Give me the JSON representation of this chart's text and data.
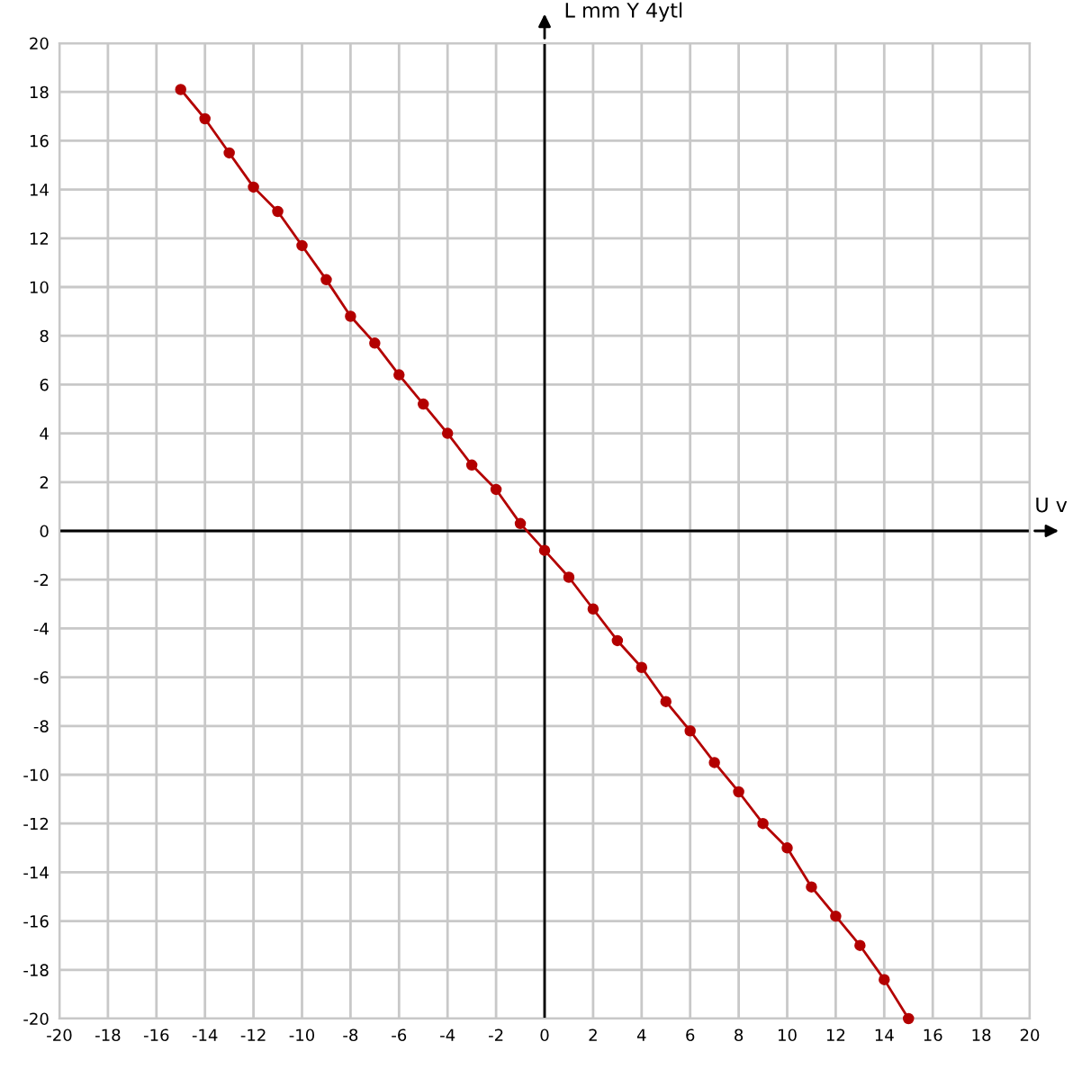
{
  "chart_data": {
    "type": "line",
    "xlabel": "U v",
    "ylabel": "L mm Y 4ytl",
    "x": [
      -15,
      -14,
      -13,
      -12,
      -11,
      -10,
      -9,
      -8,
      -7,
      -6,
      -5,
      -4,
      -3,
      -2,
      -1,
      0,
      1,
      2,
      3,
      4,
      5,
      6,
      7,
      8,
      9,
      10,
      11,
      12,
      13,
      14,
      15
    ],
    "series": [
      {
        "color": "#b30000",
        "values": [
          18.1,
          16.9,
          15.5,
          14.1,
          13.1,
          11.7,
          10.3,
          8.8,
          7.7,
          6.4,
          5.2,
          4.0,
          2.7,
          1.7,
          0.3,
          -0.8,
          -1.9,
          -3.2,
          -4.5,
          -5.6,
          -7.0,
          -8.2,
          -9.5,
          -10.7,
          -12.0,
          -13.0,
          -14.6,
          -15.8,
          -17.0,
          -18.4,
          -20.0
        ]
      }
    ],
    "xlim": [
      -20,
      20
    ],
    "ylim": [
      -20,
      20
    ],
    "xticks": [
      -20,
      -18,
      -16,
      -14,
      -12,
      -10,
      -8,
      -6,
      -4,
      -2,
      0,
      2,
      4,
      6,
      8,
      10,
      12,
      14,
      16,
      18,
      20
    ],
    "yticks": [
      -20,
      -18,
      -16,
      -14,
      -12,
      -10,
      -8,
      -6,
      -4,
      -2,
      0,
      2,
      4,
      6,
      8,
      10,
      12,
      14,
      16,
      18,
      20
    ],
    "grid": true,
    "marker": "circle",
    "line_style": "solid"
  }
}
